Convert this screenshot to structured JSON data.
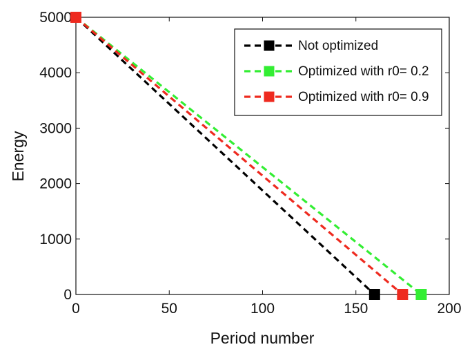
{
  "chart_data": {
    "type": "line",
    "title": "",
    "xlabel": "Period number",
    "ylabel": "Energy",
    "xlim": [
      0,
      200
    ],
    "ylim": [
      0,
      5000
    ],
    "xticks": [
      0,
      50,
      100,
      150,
      200
    ],
    "yticks": [
      0,
      1000,
      2000,
      3000,
      4000,
      5000
    ],
    "grid": false,
    "legend_position": "top-right",
    "series": [
      {
        "name": "Not optimized",
        "color": "#000000",
        "line_style": "dashed",
        "marker": "square",
        "x": [
          0,
          160
        ],
        "y": [
          5000,
          0
        ]
      },
      {
        "name": "Optimized with r0= 0.2",
        "color": "#33ee33",
        "line_style": "dashed",
        "marker": "square",
        "x": [
          0,
          185
        ],
        "y": [
          5000,
          0
        ]
      },
      {
        "name": "Optimized with r0= 0.9",
        "color": "#ee2a1f",
        "line_style": "dashed",
        "marker": "square",
        "x": [
          0,
          175
        ],
        "y": [
          5000,
          0
        ]
      }
    ]
  }
}
